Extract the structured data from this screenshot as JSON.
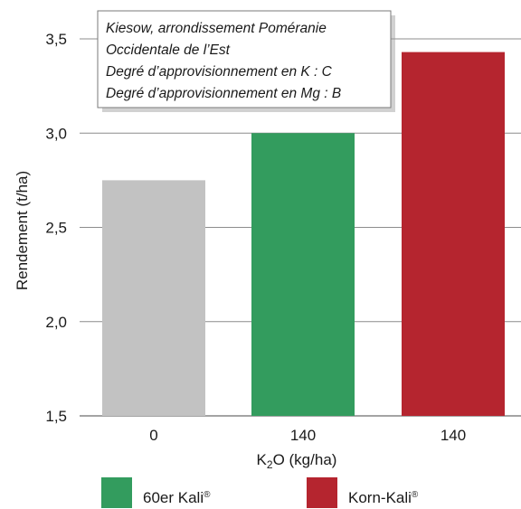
{
  "chart_data": {
    "type": "bar",
    "categories": [
      "0",
      "140",
      "140"
    ],
    "values": [
      2.75,
      3.0,
      3.43
    ],
    "colors": [
      "#c2c2c2",
      "#339c5e",
      "#b5252f"
    ],
    "ylabel": "Rendement (t/ha)",
    "xlabel": {
      "prefix": "K",
      "subscript": "2",
      "suffix": "O (kg/ha)"
    },
    "ylim": [
      1.5,
      3.5
    ],
    "yticks": [
      "1,5",
      "2,0",
      "2,5",
      "3,0",
      "3,5"
    ],
    "ytick_values": [
      1.5,
      2.0,
      2.5,
      3.0,
      3.5
    ],
    "grid": true,
    "legend": {
      "placement": "bottom",
      "items": [
        {
          "name": "60er Kali",
          "mark": "®",
          "color": "#339c5e"
        },
        {
          "name": "Korn-Kali",
          "mark": "®",
          "color": "#b5252f"
        }
      ]
    },
    "annotation": [
      "Kiesow, arrondissement Poméranie",
      "Occidentale de l’Est",
      "Degré d’approvisionnement en K : C",
      "Degré d’approvisionnement en Mg : B"
    ]
  }
}
